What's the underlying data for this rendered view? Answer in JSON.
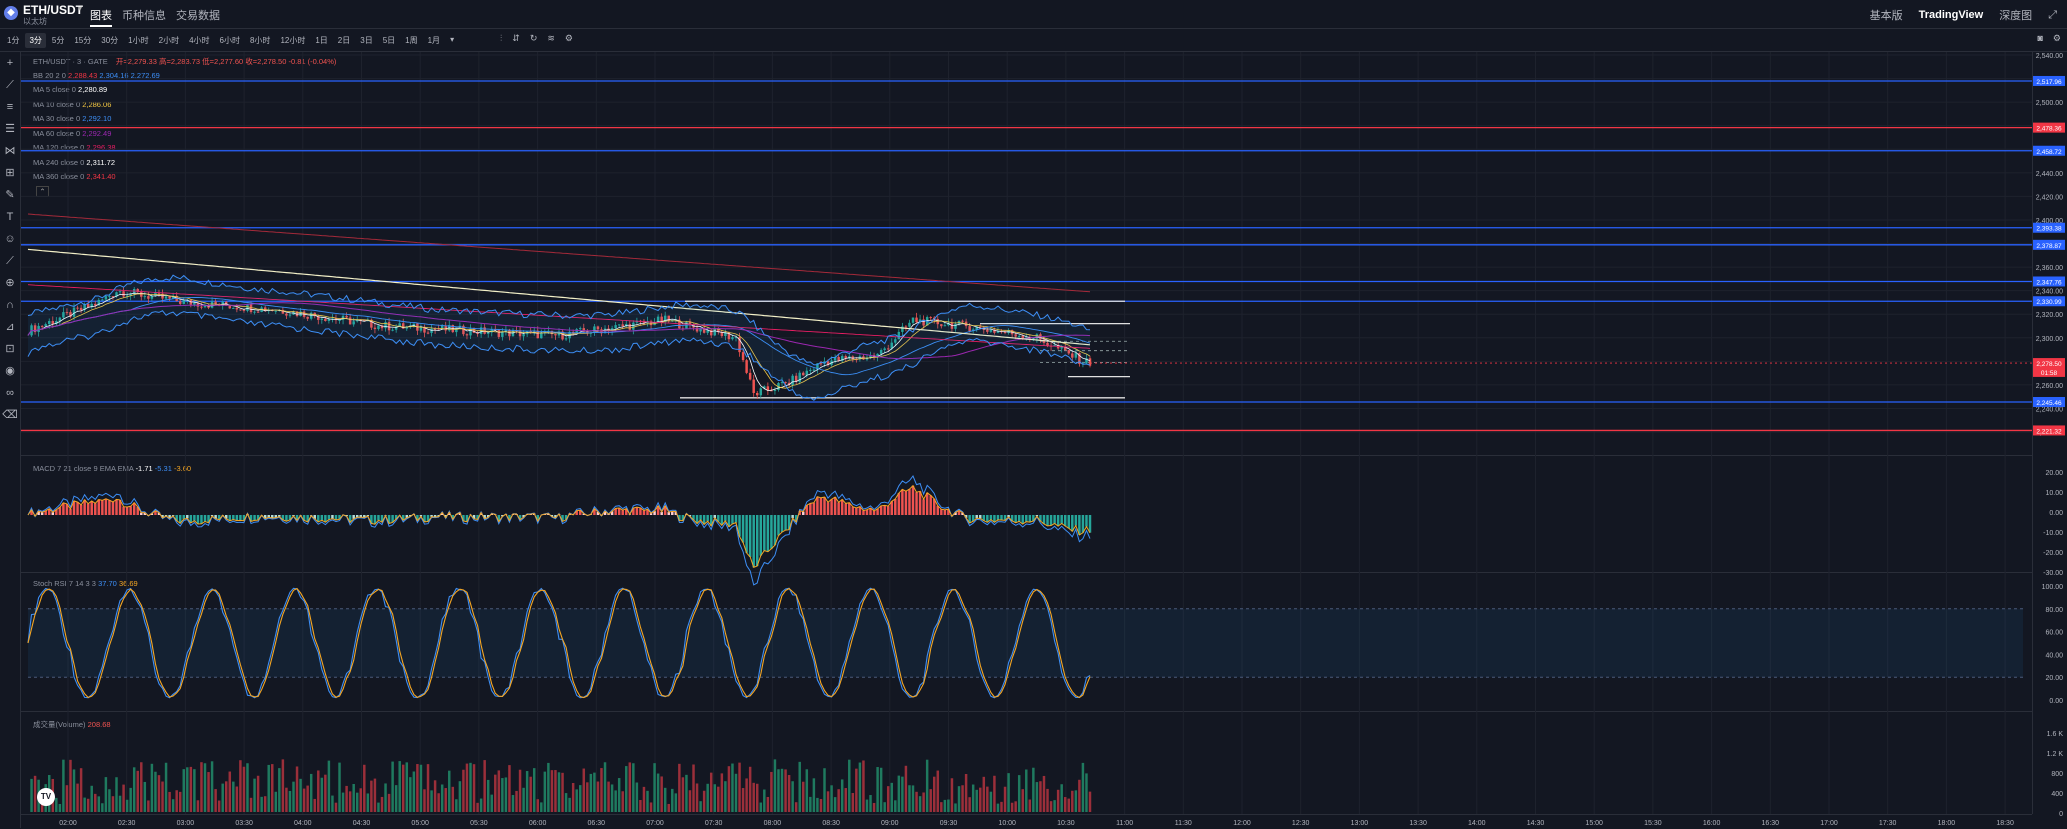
{
  "header": {
    "symbol": "ETH/USDT",
    "symbol_caret": "▾",
    "symbol_sub": "以太坊",
    "tabs": [
      "图表",
      "币种信息",
      "交易数据"
    ],
    "right_items": [
      "基本版",
      "TradingView",
      "深度图"
    ]
  },
  "toolbar": {
    "intervals": [
      "1分",
      "3分",
      "5分",
      "15分",
      "30分",
      "1小时",
      "2小时",
      "4小时",
      "6小时",
      "8小时",
      "12小时",
      "1日",
      "2日",
      "3日",
      "5日",
      "1周",
      "1月"
    ],
    "active_interval": "3分",
    "more": "▾"
  },
  "legend": {
    "title": "ETH/USDT · 3 · GATE",
    "ohlc": "开=2,279.33  高=2,283.73  低=2,277.60  收=2,278.50  -0.81 (-0.04%)",
    "bb": {
      "label": "BB 20 2 0",
      "v1": "2,288.43",
      "v2": "2,304.16",
      "v3": "2,272.69"
    },
    "ma": [
      {
        "label": "MA 5 close 0",
        "value": "2,280.89",
        "color": "#ffffff"
      },
      {
        "label": "MA 10 close 0",
        "value": "2,286.06",
        "color": "#f5c842"
      },
      {
        "label": "MA 30 close 0",
        "value": "2,292.10",
        "color": "#3d8ef5"
      },
      {
        "label": "MA 60 close 0",
        "value": "2,292.49",
        "color": "#9c27b0"
      },
      {
        "label": "MA 120 close 0",
        "value": "2,296.38",
        "color": "#e91e63"
      },
      {
        "label": "MA 240 close 0",
        "value": "2,311.72",
        "color": "#ffffff"
      },
      {
        "label": "MA 360 close 0",
        "value": "2,341.40",
        "color": "#f23645"
      }
    ],
    "macd": {
      "label": "MACD 7 21 close 9 EMA EMA",
      "v1": "-1.71",
      "v2": "-5.31",
      "v3": "-3.60"
    },
    "stoch": {
      "label": "Stoch RSI 7 14 3 3",
      "v1": "37.70",
      "v2": "36.69"
    },
    "volume": {
      "label": "成交量(Volume)",
      "v1": "208.68"
    }
  },
  "price_axis": {
    "ticks": [
      "2,540.00",
      "2,520.00",
      "2,500.00",
      "2,480.00",
      "2,460.00",
      "2,440.00",
      "2,420.00",
      "2,400.00",
      "2,380.00",
      "2,360.00",
      "2,340.00",
      "2,320.00",
      "2,300.00",
      "2,280.00",
      "2,260.00",
      "2,240.00",
      "2,220.00"
    ],
    "labels": [
      {
        "value": "2,517.96",
        "color": "#2962ff"
      },
      {
        "value": "2,478.36",
        "color": "#f23645"
      },
      {
        "value": "2,458.72",
        "color": "#2962ff"
      },
      {
        "value": "2,393.38",
        "color": "#2962ff"
      },
      {
        "value": "2,378.87",
        "color": "#2962ff"
      },
      {
        "value": "2,347.76",
        "color": "#2962ff"
      },
      {
        "value": "2,330.99",
        "color": "#2962ff"
      },
      {
        "value": "2,278.50",
        "color": "#f23645"
      },
      {
        "value": "01:58",
        "color": "#f23645"
      },
      {
        "value": "2,245.46",
        "color": "#2962ff"
      },
      {
        "value": "2,221.32",
        "color": "#f23645"
      }
    ],
    "macd_ticks": [
      "20.00",
      "10.00",
      "0.00",
      "-10.00",
      "-20.00",
      "-30.00"
    ],
    "stoch_ticks": [
      "100.00",
      "80.00",
      "60.00",
      "40.00",
      "20.00",
      "0.00"
    ],
    "vol_ticks": [
      "1.6 K",
      "1.2 K",
      "800",
      "400",
      "0"
    ]
  },
  "time_axis": [
    "02:00",
    "02:30",
    "03:00",
    "03:30",
    "04:00",
    "04:30",
    "05:00",
    "05:30",
    "06:00",
    "06:30",
    "07:00",
    "07:30",
    "08:00",
    "08:30",
    "09:00",
    "09:30",
    "10:00",
    "10:30",
    "11:00",
    "11:30",
    "12:00",
    "12:30",
    "13:00",
    "13:30",
    "14:00",
    "14:30",
    "15:00",
    "15:30",
    "16:00",
    "16:30",
    "17:00",
    "17:30",
    "18:00",
    "18:30"
  ],
  "colors": {
    "up": "#26a69a",
    "down": "#ef5350",
    "blue_line": "#2962ff",
    "red_line": "#f23645",
    "background": "#131722"
  },
  "icons": [
    "cursor-icon",
    "trendline-icon",
    "fib-icon",
    "pattern-icon",
    "brush-icon",
    "text-icon",
    "emoji-icon",
    "ruler-icon",
    "zoom-icon",
    "magnet-icon",
    "lock-icon",
    "eye-icon",
    "link-icon",
    "trash-icon"
  ],
  "badge": "TV"
}
